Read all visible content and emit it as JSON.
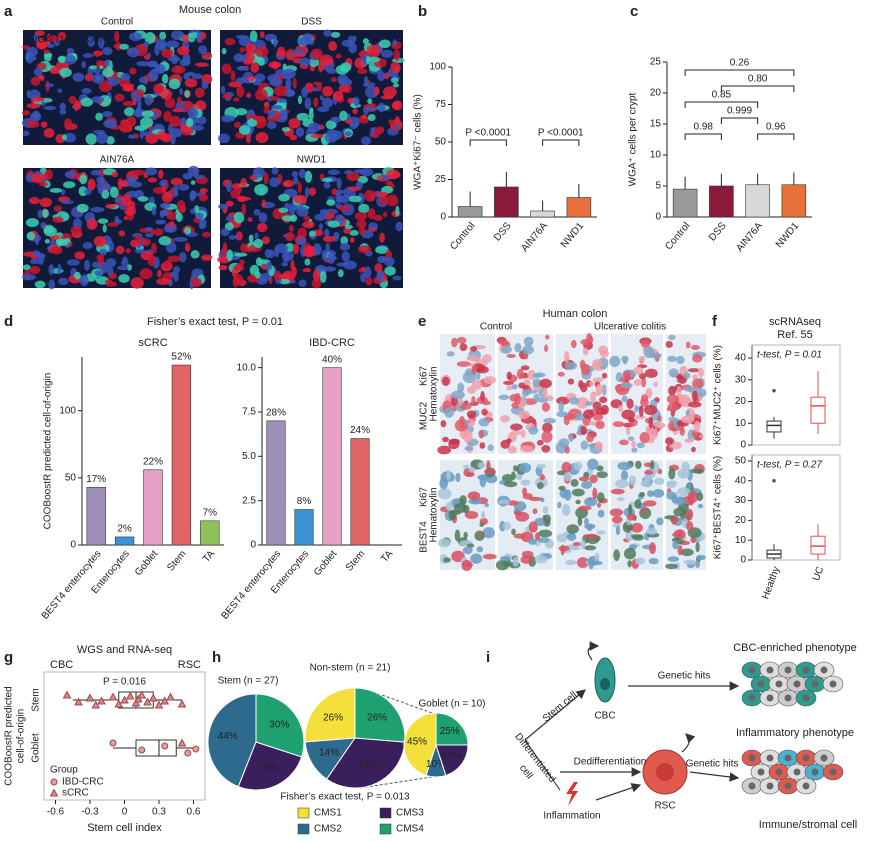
{
  "panel_labels": [
    "a",
    "b",
    "c",
    "d",
    "e",
    "f",
    "g",
    "h",
    "i"
  ],
  "panel_a": {
    "title": "Mouse colon",
    "legend": [
      "WGA",
      "DAPI",
      "Ki67"
    ],
    "images": [
      "Control",
      "DSS",
      "AIN76A",
      "NWD1"
    ]
  },
  "panel_d": {
    "title": "Fisher’s exact test, P = 0.01"
  },
  "panel_e": {
    "title": "Human colon",
    "columns": [
      "Control",
      "Ulcerative colitis"
    ],
    "rows": [
      [
        "MUC2",
        "Ki67",
        "Hematoxylin"
      ],
      [
        "BEST4",
        "Ki67",
        "Hematoxylin"
      ]
    ]
  },
  "panel_f": {
    "title": [
      "scRNAseq",
      "Ref. 55"
    ]
  },
  "panel_h": {
    "footer": "Fisher’s exact test, P = 0.013",
    "legend": [
      {
        "name": "CMS1",
        "color": "#f3e03b"
      },
      {
        "name": "CMS2",
        "color": "#2e6a8e"
      },
      {
        "name": "CMS3",
        "color": "#3b1f5c"
      },
      {
        "name": "CMS4",
        "color": "#1fa070"
      }
    ]
  },
  "chart_data": [
    {
      "type": "bar",
      "categories": [
        "Control",
        "DSS",
        "AIN76A",
        "NWD1"
      ],
      "values": [
        7,
        20,
        4,
        13
      ],
      "errors": [
        10,
        10,
        7,
        9
      ],
      "colors": [
        "#9a9a9a",
        "#8b1a3a",
        "#d8d8d8",
        "#e8703a"
      ],
      "ylim": [
        0,
        100
      ],
      "yticks": [
        0,
        25,
        50,
        75,
        100
      ],
      "ylabel": "WGA⁺Ki67⁻ cells (%)",
      "annotations": [
        {
          "pair": [
            "Control",
            "DSS"
          ],
          "label": "P <0.0001"
        },
        {
          "pair": [
            "AIN76A",
            "NWD1"
          ],
          "label": "P <0.0001"
        }
      ]
    },
    {
      "type": "bar",
      "categories": [
        "Control",
        "DSS",
        "AIN76A",
        "NWD1"
      ],
      "values": [
        4.5,
        5,
        5.2,
        5.2
      ],
      "errors": [
        2,
        2,
        1.8,
        2
      ],
      "colors": [
        "#9a9a9a",
        "#8b1a3a",
        "#d8d8d8",
        "#e8703a"
      ],
      "ylim": [
        0,
        25
      ],
      "yticks": [
        0,
        5,
        10,
        15,
        20,
        25
      ],
      "ylabel": "WGA⁺ cells per crypt",
      "annotations": [
        {
          "pair": [
            "Control",
            "NWD1"
          ],
          "label": "0.26"
        },
        {
          "pair": [
            "DSS",
            "NWD1"
          ],
          "label": "0.80"
        },
        {
          "pair": [
            "Control",
            "AIN76A"
          ],
          "label": "0.85"
        },
        {
          "pair": [
            "DSS",
            "AIN76A"
          ],
          "label": "0.999"
        },
        {
          "pair": [
            "Control",
            "DSS"
          ],
          "label": "0.98"
        },
        {
          "pair": [
            "AIN76A",
            "NWD1"
          ],
          "label": "0.96"
        }
      ]
    },
    {
      "type": "bar",
      "title": "sCRC",
      "categories": [
        "BEST4 enterocytes",
        "Enterocytes",
        "Goblet",
        "Stem",
        "TA"
      ],
      "values": [
        43,
        6,
        56,
        134,
        18
      ],
      "value_labels": [
        "17%",
        "2%",
        "22%",
        "52%",
        "7%"
      ],
      "colors": [
        "#9d8fb5",
        "#3c93d3",
        "#e7a1c8",
        "#e06464",
        "#8fc25c"
      ],
      "ylim": [
        0,
        140
      ],
      "yticks": [
        0,
        50,
        100
      ],
      "ylabel": "COOBoostR predicted cell-of-origin"
    },
    {
      "type": "bar",
      "title": "IBD-CRC",
      "categories": [
        "BEST4 enterocytes",
        "Enterocytes",
        "Goblet",
        "Stem",
        "TA"
      ],
      "values": [
        7,
        2,
        10,
        6,
        0
      ],
      "value_labels": [
        "28%",
        "8%",
        "40%",
        "24%",
        null
      ],
      "colors": [
        "#9d8fb5",
        "#3c93d3",
        "#e7a1c8",
        "#e06464",
        "#8fc25c"
      ],
      "ylim": [
        0,
        10.6
      ],
      "yticks": [
        0,
        2.5,
        {
          "value": 5,
          "label": "5.0"
        },
        7.5,
        {
          "value": 10,
          "label": "10.0"
        }
      ]
    },
    {
      "type": "box",
      "ylim": [
        0,
        46
      ],
      "yticks": [
        0,
        10,
        20,
        30,
        40
      ],
      "ylabel": "Ki67⁺MUC2⁺ cells (%)",
      "annotation": "t-test, P = 0.01",
      "colors": [
        "#333333",
        "#e05050"
      ],
      "boxes": [
        {
          "whislo": 3,
          "q1": 6,
          "med": 9,
          "q3": 11,
          "whishi": 13,
          "fliers": [
            25
          ]
        },
        {
          "whislo": 5,
          "q1": 10,
          "med": 18,
          "q3": 22,
          "whishi": 34,
          "fliers": []
        }
      ]
    },
    {
      "type": "box",
      "categories": [
        "Healthy",
        "UC"
      ],
      "ylim": [
        0,
        53
      ],
      "yticks": [
        0,
        10,
        20,
        30,
        40,
        50
      ],
      "ylabel": "Ki67⁺BEST4⁺ cells (%)",
      "annotation": "t-test, P = 0.27",
      "colors": [
        "#333333",
        "#e05050"
      ],
      "boxes": [
        {
          "whislo": 0,
          "q1": 1,
          "med": 3,
          "q3": 5,
          "whishi": 8,
          "fliers": [
            40
          ]
        },
        {
          "whislo": 0,
          "q1": 3,
          "med": 7,
          "q3": 12,
          "whishi": 18,
          "fliers": []
        }
      ]
    },
    {
      "type": "hbox",
      "title": "WGS and RNA-seq",
      "categories": [
        "Stem",
        "Goblet"
      ],
      "xlim": [
        -0.7,
        0.7
      ],
      "xticks": [
        -0.6,
        -0.3,
        0,
        0.3,
        0.6
      ],
      "xlabel": "Stem cell index",
      "ylabel": [
        "COOBoostR predicted",
        "cell-of-origin"
      ],
      "ends": [
        "CBC",
        "RSC"
      ],
      "annotation": "P = 0.016",
      "color": "#a04848",
      "boxes": [
        {
          "whislo": -0.45,
          "q1": -0.05,
          "med": 0.1,
          "q3": 0.25,
          "whishi": 0.5
        },
        {
          "whislo": -0.1,
          "q1": 0.1,
          "med": 0.3,
          "q3": 0.45,
          "whishi": 0.62
        }
      ],
      "legend_title": "Group",
      "series": [
        {
          "name": "IBD-CRC",
          "marker": "circle",
          "points": [
            [],
            [
              -0.1,
              0.15,
              0.35,
              0.55,
              0.62
            ]
          ]
        },
        {
          "name": "sCRC",
          "marker": "triangle",
          "points": [
            [
              -0.5,
              -0.4,
              -0.3,
              -0.25,
              -0.2,
              -0.1,
              -0.05,
              0,
              0.05,
              0.1,
              0.12,
              0.15,
              0.2,
              0.25,
              0.3,
              0.35,
              0.4,
              0.5
            ],
            [
              0.5
            ]
          ]
        }
      ]
    },
    {
      "type": "pie",
      "title": "Stem (n = 27)",
      "categories": [
        "CMS2",
        "CMS3",
        "CMS4"
      ],
      "values": [
        44,
        26,
        30
      ],
      "value_labels": [
        "44%",
        "26%",
        "30%"
      ],
      "colors": [
        "#2e6a8e",
        "#3b1f5c",
        "#1fa070"
      ]
    },
    {
      "type": "pie",
      "title": "Non-stem (n = 21)",
      "categories": [
        "CMS1",
        "CMS2",
        "CMS3",
        "CMS4"
      ],
      "values": [
        26,
        14,
        33,
        26
      ],
      "value_labels": [
        "26%",
        "14%",
        "33%",
        "26%"
      ],
      "colors": [
        "#f3e03b",
        "#2e6a8e",
        "#3b1f5c",
        "#1fa070"
      ]
    },
    {
      "type": "pie",
      "title": "Goblet (n = 10)",
      "categories": [
        "CMS1",
        "CMS2",
        "CMS3",
        "CMS4"
      ],
      "values": [
        45,
        10,
        20,
        25
      ],
      "value_labels": [
        "45%",
        "10%",
        "20%",
        "25%"
      ],
      "colors": [
        "#f3e03b",
        "#2e6a8e",
        "#3b1f5c",
        "#1fa070"
      ]
    }
  ],
  "diagram": {
    "stem_cell": "Stem cell",
    "cbc": "CBC",
    "genetic_hits_1": "Genetic hits",
    "cbc_phenotype": "CBC-enriched phenotype",
    "differentiated_cell": [
      "Differentiated",
      "cell"
    ],
    "dedifferentiation": "Dedifferentiation",
    "inflammation": "Inflammation",
    "rsc": "RSC",
    "genetic_hits_2": "Genetic hits",
    "inflammatory_phenotype": "Inflammatory phenotype",
    "immune_stromal": "Immune/stromal cell"
  }
}
